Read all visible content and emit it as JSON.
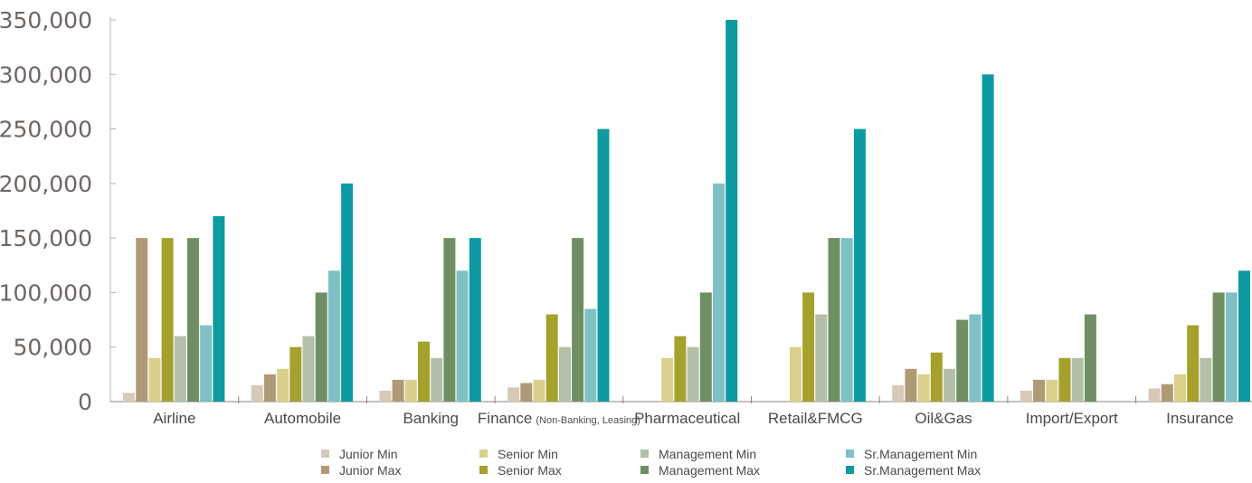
{
  "chart_data": {
    "type": "bar",
    "title": "",
    "xlabel": "",
    "ylabel": "",
    "ylim": [
      0,
      350000
    ],
    "yticks": [
      "0",
      "50,000",
      "100,000",
      "150,000",
      "200,000",
      "250,000",
      "300,000",
      "350,000"
    ],
    "grid": false,
    "legend_position": "bottom",
    "categories": [
      {
        "label": "Airline",
        "note": ""
      },
      {
        "label": "Automobile",
        "note": ""
      },
      {
        "label": "Banking",
        "note": ""
      },
      {
        "label": "Finance",
        "note": "(Non-Banking, Leasing)"
      },
      {
        "label": "Pharmaceutical",
        "note": ""
      },
      {
        "label": "Retail&FMCG",
        "note": ""
      },
      {
        "label": "Oil&Gas",
        "note": ""
      },
      {
        "label": "Import/Export",
        "note": ""
      },
      {
        "label": "Insurance",
        "note": ""
      }
    ],
    "series": [
      {
        "name": "Junior Min",
        "color": "#d6c9b6",
        "values": [
          8000,
          15000,
          10000,
          13000,
          null,
          null,
          15000,
          10000,
          12000
        ]
      },
      {
        "name": "Junior Max",
        "color": "#b09a76",
        "values": [
          150000,
          25000,
          20000,
          17000,
          null,
          null,
          30000,
          20000,
          16000
        ]
      },
      {
        "name": "Senior Min",
        "color": "#d9d08c",
        "values": [
          40000,
          30000,
          20000,
          20000,
          40000,
          50000,
          25000,
          20000,
          25000
        ]
      },
      {
        "name": "Senior Max",
        "color": "#a6a02c",
        "values": [
          150000,
          50000,
          55000,
          80000,
          60000,
          100000,
          45000,
          40000,
          70000
        ]
      },
      {
        "name": "Management Min",
        "color": "#b4bfa8",
        "values": [
          60000,
          60000,
          40000,
          50000,
          50000,
          80000,
          30000,
          40000,
          40000
        ]
      },
      {
        "name": "Management Max",
        "color": "#6f8f63",
        "values": [
          150000,
          100000,
          150000,
          150000,
          100000,
          150000,
          75000,
          80000,
          100000
        ]
      },
      {
        "name": "Sr.Management Min",
        "color": "#7ec0c5",
        "values": [
          70000,
          120000,
          120000,
          85000,
          200000,
          150000,
          80000,
          null,
          100000
        ]
      },
      {
        "name": "Sr.Management Max",
        "color": "#0d9aa0",
        "values": [
          170000,
          200000,
          150000,
          250000,
          350000,
          250000,
          300000,
          null,
          120000
        ]
      }
    ],
    "legend_rows": [
      [
        "Junior Min",
        "Senior Min",
        "Management Min",
        "Sr.Management Min"
      ],
      [
        "Junior Max",
        "Senior Max",
        "Management Max",
        "Sr.Management Max"
      ]
    ]
  }
}
